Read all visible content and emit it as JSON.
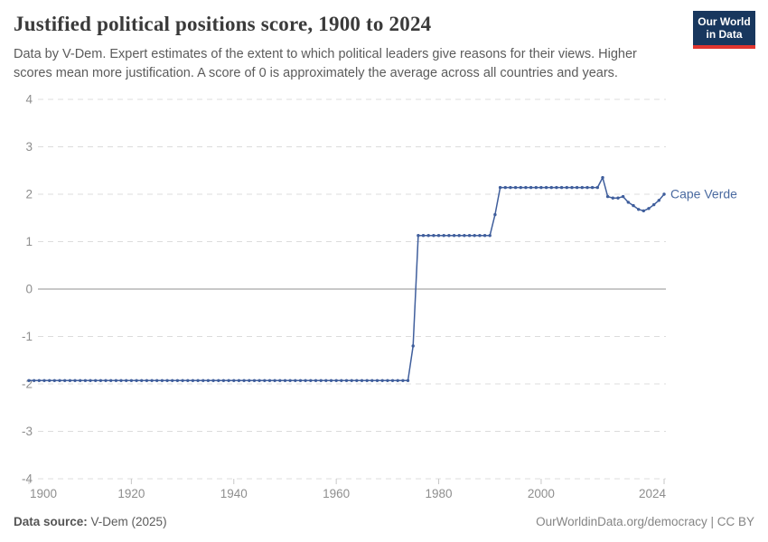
{
  "header": {
    "title": "Justified political positions score, 1900 to 2024",
    "subtitle": "Data by V-Dem. Expert estimates of the extent to which political leaders give reasons for their views. Higher scores mean more justification. A score of 0 is approximately the average across all countries and years.",
    "logo": {
      "line1": "Our World",
      "line2": "in Data",
      "bg_color": "#18375e",
      "accent_color": "#e1352f"
    }
  },
  "footer": {
    "source_label": "Data source:",
    "source_value": " V-Dem (2025)",
    "license": "OurWorldinData.org/democracy | CC BY"
  },
  "chart_data": {
    "type": "line",
    "title": "Justified political positions score, 1900 to 2024",
    "entity_label": "Cape Verde",
    "line_color": "#3f5e9c",
    "label_color": "#4a6aa0",
    "axis_label_color": "#8e8e8e",
    "grid_color": "#dcdcdc",
    "zero_line_color": "#a6a6a6",
    "tick_color": "#c6c6c6",
    "xlim": [
      1900,
      2024
    ],
    "ylim": [
      -4,
      4
    ],
    "x_ticks": [
      1900,
      1920,
      1940,
      1960,
      1980,
      2000,
      2024
    ],
    "y_ticks": [
      4,
      3,
      2,
      1,
      0,
      -1,
      -2,
      -3,
      -4
    ],
    "grid": "horizontal dashed gridlines, solid zero line",
    "legend_position": "end-of-line label",
    "x_years": {
      "start": 1900,
      "end": 2024,
      "step": 1
    },
    "values": [
      -1.93,
      -1.93,
      -1.93,
      -1.93,
      -1.93,
      -1.93,
      -1.93,
      -1.93,
      -1.93,
      -1.93,
      -1.93,
      -1.93,
      -1.93,
      -1.93,
      -1.93,
      -1.93,
      -1.93,
      -1.93,
      -1.93,
      -1.93,
      -1.93,
      -1.93,
      -1.93,
      -1.93,
      -1.93,
      -1.93,
      -1.93,
      -1.93,
      -1.93,
      -1.93,
      -1.93,
      -1.93,
      -1.93,
      -1.93,
      -1.93,
      -1.93,
      -1.93,
      -1.93,
      -1.93,
      -1.93,
      -1.93,
      -1.93,
      -1.93,
      -1.93,
      -1.93,
      -1.93,
      -1.93,
      -1.93,
      -1.93,
      -1.93,
      -1.93,
      -1.93,
      -1.93,
      -1.93,
      -1.93,
      -1.93,
      -1.93,
      -1.93,
      -1.93,
      -1.93,
      -1.93,
      -1.93,
      -1.93,
      -1.93,
      -1.93,
      -1.93,
      -1.93,
      -1.93,
      -1.93,
      -1.93,
      -1.93,
      -1.93,
      -1.93,
      -1.93,
      -1.93,
      -1.2,
      1.13,
      1.13,
      1.13,
      1.13,
      1.13,
      1.13,
      1.13,
      1.13,
      1.13,
      1.13,
      1.13,
      1.13,
      1.13,
      1.13,
      1.13,
      1.57,
      2.14,
      2.14,
      2.14,
      2.14,
      2.14,
      2.14,
      2.14,
      2.14,
      2.14,
      2.14,
      2.14,
      2.14,
      2.14,
      2.14,
      2.14,
      2.14,
      2.14,
      2.14,
      2.14,
      2.14,
      2.35,
      1.95,
      1.92,
      1.92,
      1.95,
      1.83,
      1.76,
      1.68,
      1.65,
      1.7,
      1.78,
      1.87,
      2.0
    ]
  }
}
